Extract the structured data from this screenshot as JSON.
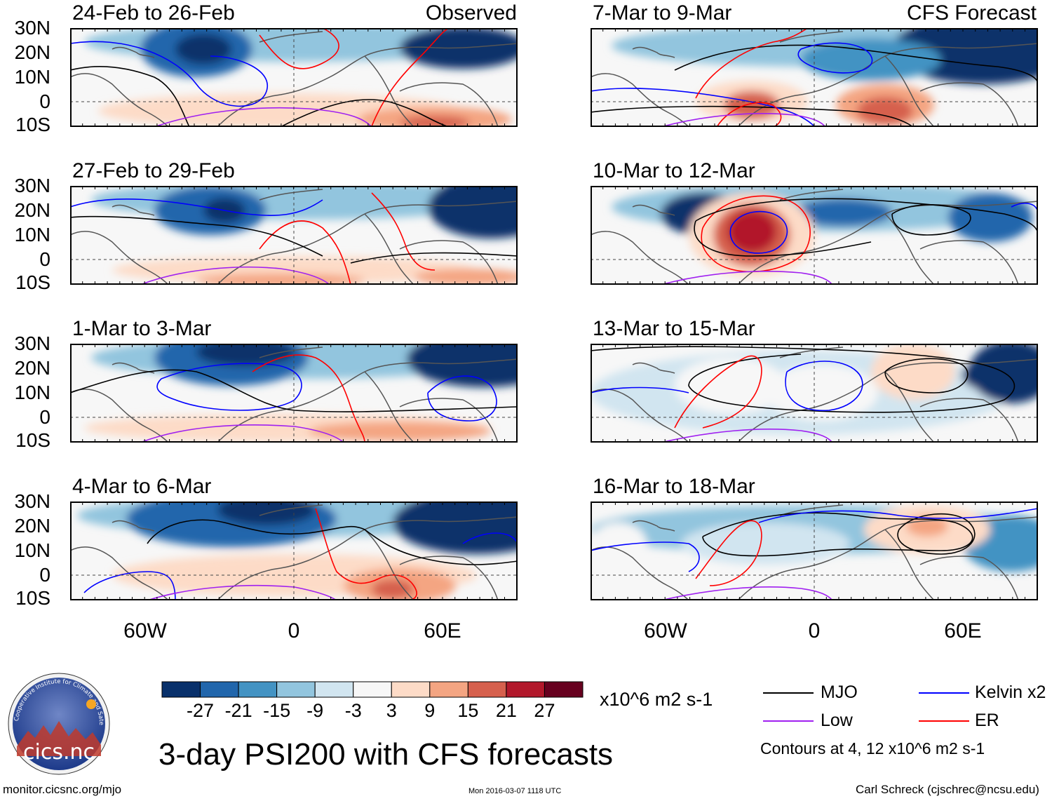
{
  "main_title": "3-day PSI200 with CFS forecasts",
  "left_column_tag": "Observed",
  "right_column_tag": "CFS Forecast",
  "lat_ticks": [
    "30N",
    "20N",
    "10N",
    "0",
    "10S"
  ],
  "lon_ticks": [
    "60W",
    "0",
    "60E"
  ],
  "panels": [
    {
      "id": "p1",
      "title": "24-Feb to 26-Feb",
      "source": "Observed"
    },
    {
      "id": "p2",
      "title": "27-Feb to 29-Feb",
      "source": "Observed"
    },
    {
      "id": "p3",
      "title": "1-Mar to 3-Mar",
      "source": "Observed"
    },
    {
      "id": "p4",
      "title": "4-Mar to 6-Mar",
      "source": "Observed"
    },
    {
      "id": "p5",
      "title": "7-Mar to 9-Mar",
      "source": "CFS Forecast"
    },
    {
      "id": "p6",
      "title": "10-Mar to 12-Mar",
      "source": "CFS Forecast"
    },
    {
      "id": "p7",
      "title": "13-Mar to 15-Mar",
      "source": "CFS Forecast"
    },
    {
      "id": "p8",
      "title": "16-Mar to 18-Mar",
      "source": "CFS Forecast"
    }
  ],
  "colorbar": {
    "labels": [
      "-27",
      "-21",
      "-15",
      "-9",
      "-3",
      "3",
      "9",
      "15",
      "21",
      "27"
    ],
    "colors": [
      "#08306b",
      "#2166ac",
      "#4393c3",
      "#92c5de",
      "#d1e5f0",
      "#f7f7f7",
      "#fddbc7",
      "#f4a582",
      "#d6604d",
      "#b2182b",
      "#67001f"
    ],
    "units": "x10^6 m2 s-1"
  },
  "legend": {
    "items": [
      {
        "label": "MJO",
        "color": "#000000"
      },
      {
        "label": "Kelvin x2",
        "color": "#0000ff"
      },
      {
        "label": "Low",
        "color": "#a020f0"
      },
      {
        "label": "ER",
        "color": "#ff0000"
      }
    ],
    "contour_note": "Contours at 4, 12 x10^6 m2 s-1"
  },
  "logo_text": "cics.nc",
  "logo_ring_text": "Cooperative Institute for Climate and Satellites",
  "footer": {
    "url": "monitor.cicsnc.org/mjo",
    "timestamp": "Mon 2016-03-07 1118 UTC",
    "credit": "Carl Schreck (cjschrec@ncsu.edu)"
  }
}
